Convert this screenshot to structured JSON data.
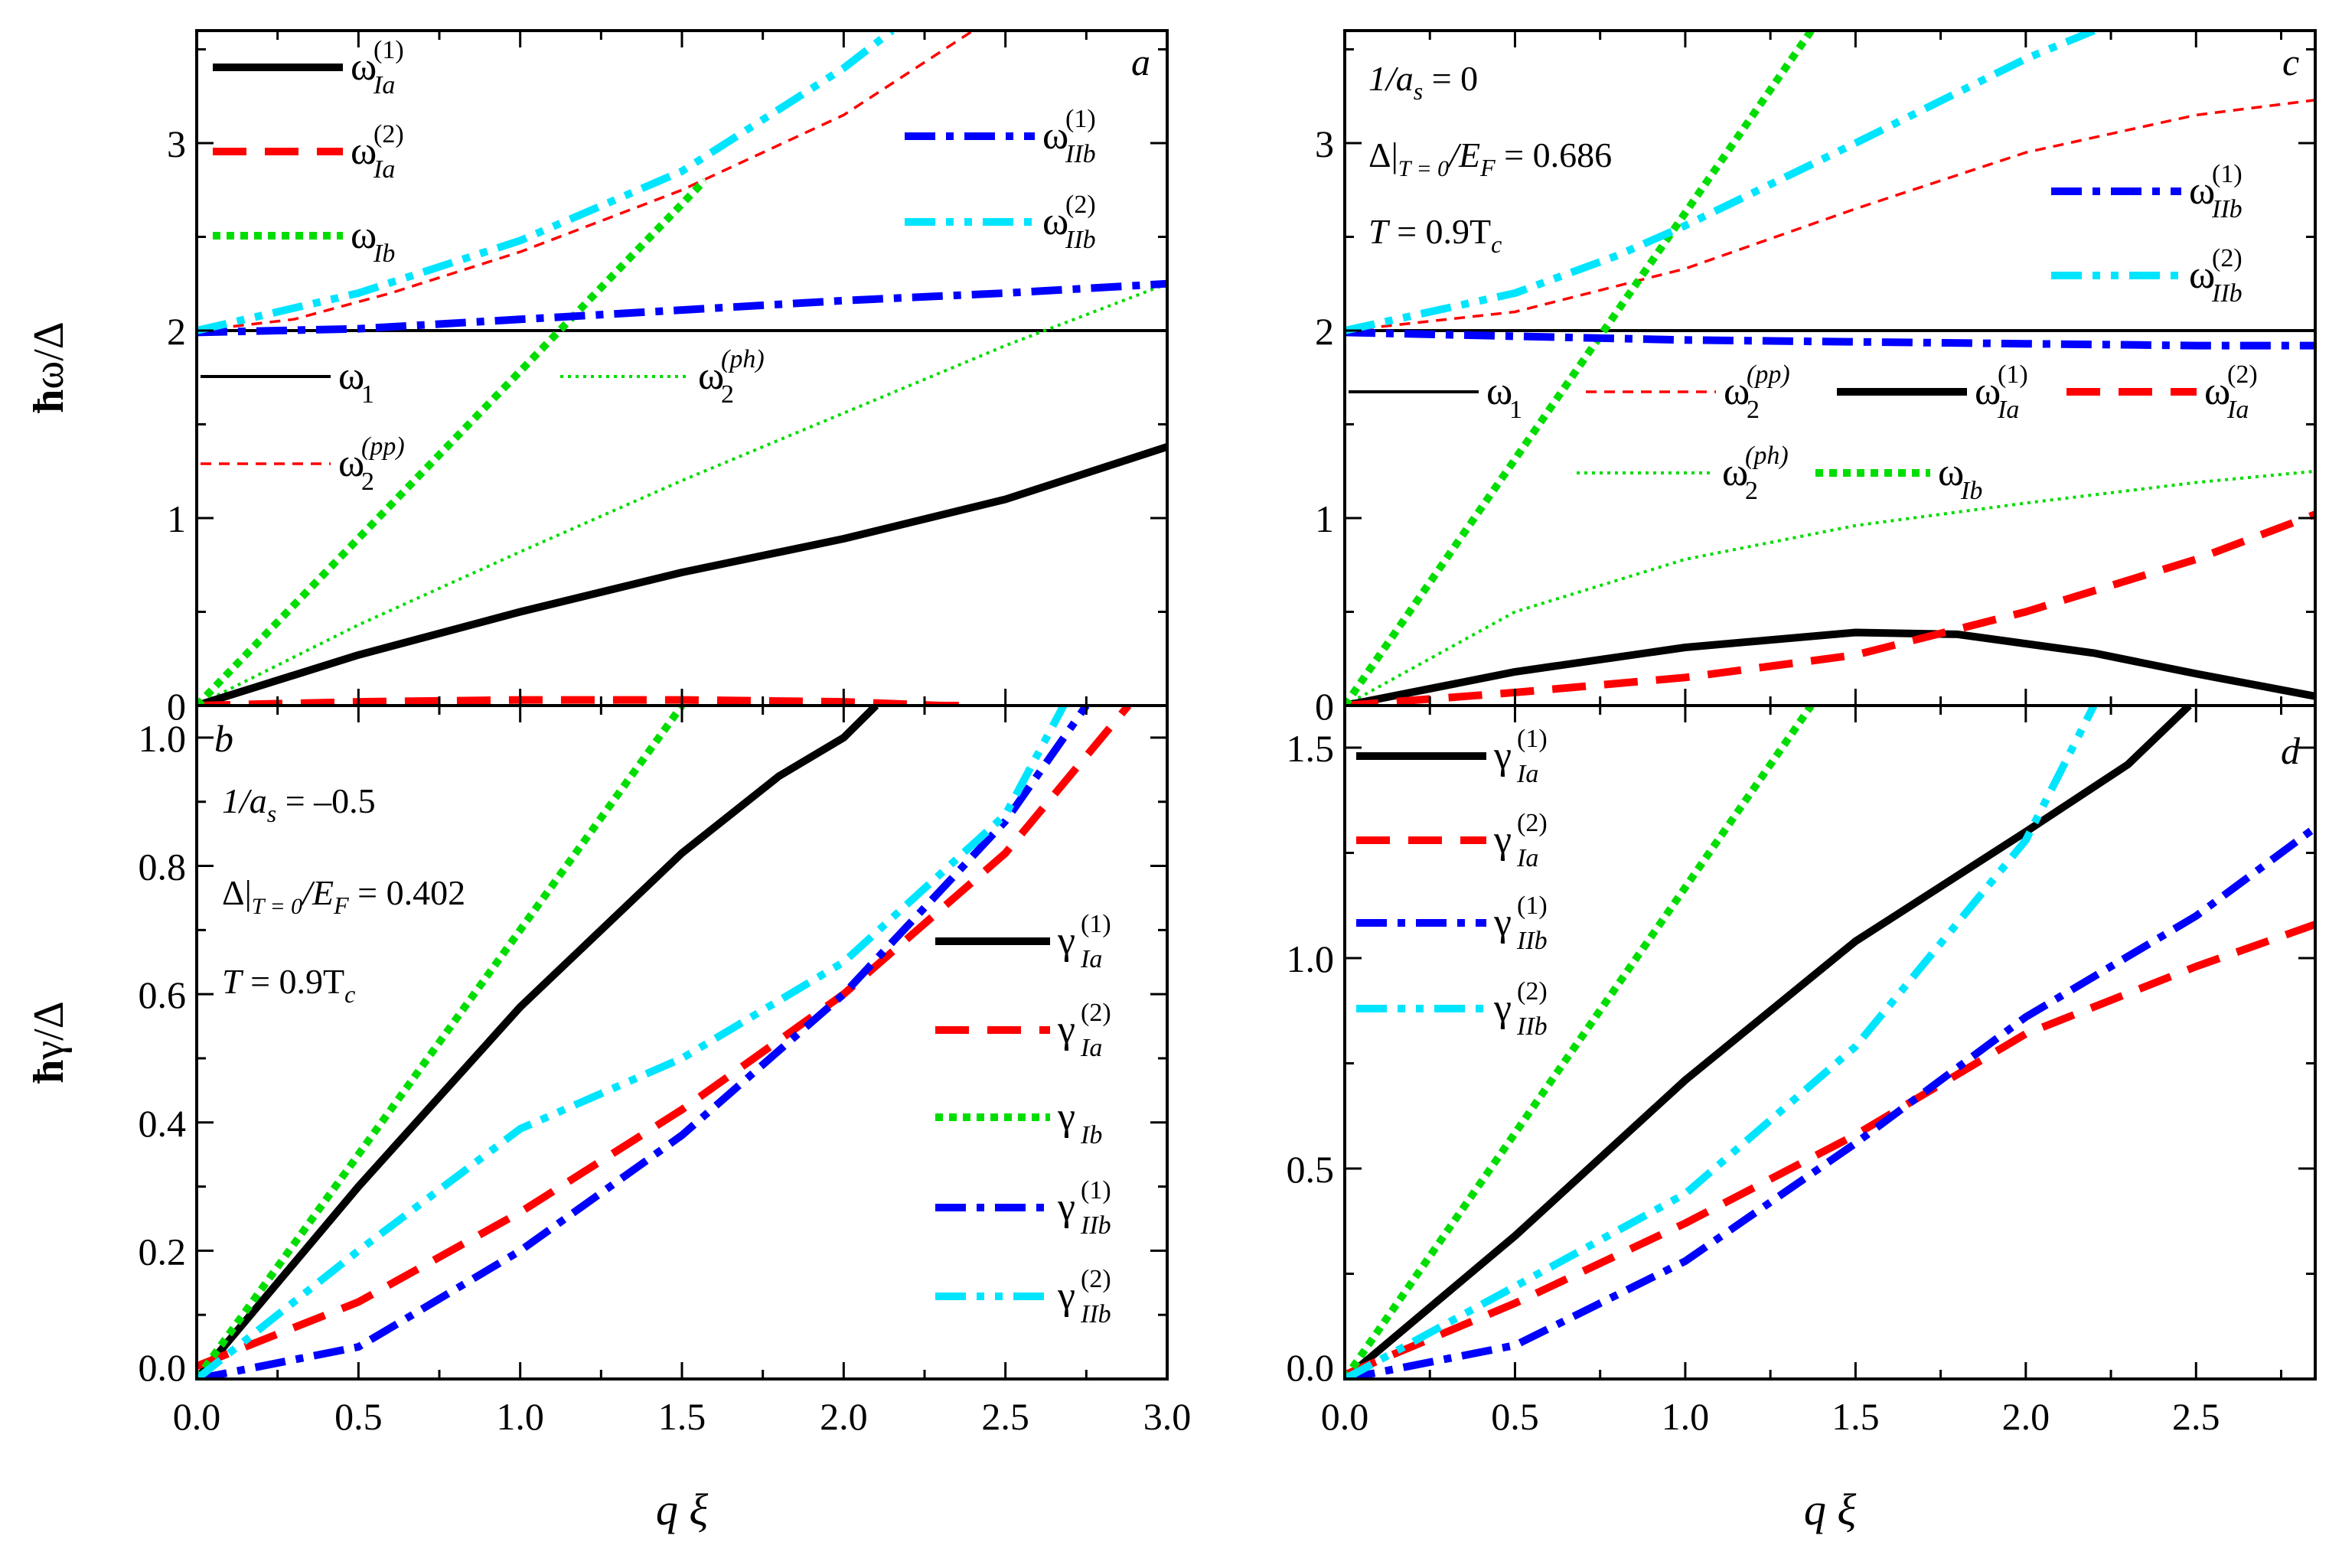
{
  "figure": {
    "xlabel_q": "q",
    "xlabel_xi": "ξ",
    "ylabel_top_hbar": "ħ",
    "ylabel_top_rest": "ω/Δ",
    "ylabel_bottom_hbar": "ħ",
    "ylabel_bottom_rest": "γ/Δ"
  },
  "chart_data": [
    {
      "id": "a",
      "type": "line",
      "panel_letter": "a",
      "xlim": [
        0,
        3.0
      ],
      "ylim": [
        0,
        3.6
      ],
      "xticks": [
        0.0,
        0.5,
        1.0,
        1.5,
        2.0,
        2.5,
        3.0
      ],
      "xtick_labels": [],
      "yticks": [
        0,
        1,
        2,
        3
      ],
      "ytick_labels": [
        "0",
        "1",
        "2",
        "3"
      ],
      "params": [],
      "series": [
        {
          "name": "ω1",
          "color": "#000000",
          "style": "thin-solid",
          "x": [
            0,
            3.0
          ],
          "y": [
            2.0,
            2.0
          ]
        },
        {
          "name": "ω2(pp)",
          "color": "#ff0000",
          "style": "thin-dash",
          "x": [
            0,
            0.3,
            0.6,
            1.0,
            1.5,
            2.0,
            2.4
          ],
          "y": [
            2.0,
            2.06,
            2.2,
            2.42,
            2.75,
            3.15,
            3.6
          ]
        },
        {
          "name": "ω2(ph)",
          "color": "#00dd00",
          "style": "thin-dot",
          "x": [
            0,
            0.5,
            1.0,
            1.5,
            2.0,
            2.5,
            3.0
          ],
          "y": [
            0,
            0.43,
            0.82,
            1.2,
            1.56,
            1.92,
            2.25
          ]
        },
        {
          "name": "ωIa(1)",
          "color": "#000000",
          "style": "thick-solid",
          "x": [
            0,
            0.5,
            1.0,
            1.5,
            2.0,
            2.5,
            3.0
          ],
          "y": [
            0,
            0.27,
            0.5,
            0.71,
            0.89,
            1.1,
            1.38
          ]
        },
        {
          "name": "ωIa(2)",
          "color": "#ff0000",
          "style": "thick-dash",
          "x": [
            0,
            0.5,
            1.0,
            1.5,
            2.0,
            2.3,
            2.4
          ],
          "y": [
            0,
            0.02,
            0.03,
            0.03,
            0.02,
            0.0,
            0.0
          ]
        },
        {
          "name": "ωIb",
          "color": "#00dd00",
          "style": "thick-dot",
          "x": [
            0,
            1.57
          ],
          "y": [
            0,
            2.8
          ]
        },
        {
          "name": "ωIIb(1)",
          "color": "#0000ff",
          "style": "thick-dashdot",
          "x": [
            0,
            0.5,
            1.0,
            1.5,
            2.0,
            2.5,
            3.0
          ],
          "y": [
            1.99,
            2.01,
            2.06,
            2.11,
            2.16,
            2.2,
            2.25
          ]
        },
        {
          "name": "ωIIb(2)",
          "color": "#00e5ff",
          "style": "thick-dashdotdot",
          "x": [
            0,
            0.5,
            1.0,
            1.5,
            2.0,
            2.15
          ],
          "y": [
            2.0,
            2.2,
            2.48,
            2.85,
            3.4,
            3.6
          ]
        }
      ]
    },
    {
      "id": "b",
      "type": "line",
      "panel_letter": "b",
      "xlim": [
        0,
        3.0
      ],
      "ylim": [
        0,
        1.05
      ],
      "xticks": [
        0.0,
        0.5,
        1.0,
        1.5,
        2.0,
        2.5,
        3.0
      ],
      "xtick_labels": [
        "0.0",
        "0.5",
        "1.0",
        "1.5",
        "2.0",
        "2.5",
        "3.0"
      ],
      "yticks": [
        0.0,
        0.2,
        0.4,
        0.6,
        0.8,
        1.0
      ],
      "ytick_labels": [
        "0.0",
        "0.2",
        "0.4",
        "0.6",
        "0.8",
        "1.0"
      ],
      "params": [
        {
          "lhs": "1/a",
          "sub": "s",
          "rhs": " = –0.5"
        },
        {
          "lhs": "Δ|",
          "sub": "T = 0",
          "rhs": "/E",
          "sub2": "F",
          "rhs2": " = 0.402"
        },
        {
          "lhs": "T",
          "rhs": " = 0.9T",
          "sub": "c"
        }
      ],
      "series": [
        {
          "name": "γIa(1)",
          "color": "#000000",
          "style": "thick-solid",
          "x": [
            0,
            0.5,
            1.0,
            1.5,
            1.8,
            2.0,
            2.1
          ],
          "y": [
            0,
            0.3,
            0.58,
            0.82,
            0.94,
            1.0,
            1.05
          ]
        },
        {
          "name": "γIa(2)",
          "color": "#ff0000",
          "style": "thick-dash",
          "x": [
            0,
            0.5,
            1.0,
            1.5,
            2.0,
            2.5,
            2.88
          ],
          "y": [
            0.02,
            0.12,
            0.26,
            0.42,
            0.6,
            0.82,
            1.05
          ]
        },
        {
          "name": "γIb",
          "color": "#00dd00",
          "style": "thick-dot",
          "x": [
            0,
            1.5
          ],
          "y": [
            0,
            1.05
          ]
        },
        {
          "name": "γIIb(1)",
          "color": "#0000ff",
          "style": "thick-dashdot",
          "x": [
            0,
            0.5,
            1.0,
            1.5,
            2.0,
            2.5,
            2.75
          ],
          "y": [
            0,
            0.05,
            0.2,
            0.38,
            0.6,
            0.87,
            1.05
          ]
        },
        {
          "name": "γIIb(2)",
          "color": "#00e5ff",
          "style": "thick-dashdotdot",
          "x": [
            0,
            0.5,
            1.0,
            1.5,
            2.0,
            2.5,
            2.68
          ],
          "y": [
            0,
            0.2,
            0.39,
            0.5,
            0.65,
            0.88,
            1.05
          ]
        }
      ]
    },
    {
      "id": "c",
      "type": "line",
      "panel_letter": "c",
      "xlim": [
        0,
        2.85
      ],
      "ylim": [
        0,
        3.6
      ],
      "xticks": [
        0.0,
        0.5,
        1.0,
        1.5,
        2.0,
        2.5
      ],
      "xtick_labels": [],
      "yticks": [
        0,
        1,
        2,
        3
      ],
      "ytick_labels": [
        "0",
        "1",
        "2",
        "3"
      ],
      "params": [
        {
          "lhs": "1/a",
          "sub": "s",
          "rhs": " = 0"
        },
        {
          "lhs": "Δ|",
          "sub": "T = 0",
          "rhs": "/E",
          "sub2": "F",
          "rhs2": " = 0.686"
        },
        {
          "lhs": "T",
          "rhs": " = 0.9T",
          "sub": "c"
        }
      ],
      "series": [
        {
          "name": "ω1",
          "color": "#000000",
          "style": "thin-solid",
          "x": [
            0,
            2.85
          ],
          "y": [
            2.0,
            2.0
          ]
        },
        {
          "name": "ω2(pp)",
          "color": "#ff0000",
          "style": "thin-dash",
          "x": [
            0,
            0.5,
            1.0,
            1.5,
            2.0,
            2.5,
            2.85
          ],
          "y": [
            2.0,
            2.1,
            2.33,
            2.65,
            2.95,
            3.15,
            3.23
          ]
        },
        {
          "name": "ω2(ph)",
          "color": "#00dd00",
          "style": "thin-dot",
          "x": [
            0,
            0.5,
            1.0,
            1.5,
            2.0,
            2.5,
            2.85
          ],
          "y": [
            0,
            0.5,
            0.78,
            0.96,
            1.08,
            1.19,
            1.25
          ]
        },
        {
          "name": "ωIa(1)",
          "color": "#000000",
          "style": "thick-solid",
          "x": [
            0,
            0.5,
            1.0,
            1.5,
            1.8,
            2.2,
            2.5,
            2.85
          ],
          "y": [
            0,
            0.18,
            0.31,
            0.39,
            0.38,
            0.28,
            0.17,
            0.05
          ]
        },
        {
          "name": "ωIa(2)",
          "color": "#ff0000",
          "style": "thick-dash",
          "x": [
            0,
            0.5,
            1.0,
            1.5,
            2.0,
            2.5,
            2.85
          ],
          "y": [
            0,
            0.07,
            0.15,
            0.27,
            0.5,
            0.78,
            1.02
          ]
        },
        {
          "name": "ωIb",
          "color": "#00dd00",
          "style": "thick-dot",
          "x": [
            0,
            1.37
          ],
          "y": [
            0,
            3.6
          ]
        },
        {
          "name": "ωIIb(1)",
          "color": "#0000ff",
          "style": "thick-dashdot",
          "x": [
            0,
            0.5,
            1.0,
            1.5,
            2.0,
            2.5,
            2.85
          ],
          "y": [
            1.99,
            1.97,
            1.95,
            1.94,
            1.93,
            1.92,
            1.92
          ]
        },
        {
          "name": "ωIIb(2)",
          "color": "#00e5ff",
          "style": "thick-dashdotdot",
          "x": [
            0,
            0.5,
            0.8,
            1.0,
            1.5,
            2.0,
            2.2
          ],
          "y": [
            2.0,
            2.2,
            2.4,
            2.56,
            3.0,
            3.45,
            3.6
          ]
        }
      ]
    },
    {
      "id": "d",
      "type": "line",
      "panel_letter": "d",
      "xlim": [
        0,
        2.85
      ],
      "ylim": [
        0,
        1.6
      ],
      "xticks": [
        0.0,
        0.5,
        1.0,
        1.5,
        2.0,
        2.5
      ],
      "xtick_labels": [
        "0.0",
        "0.5",
        "1.0",
        "1.5",
        "2.0",
        "2.5"
      ],
      "yticks": [
        0.0,
        0.5,
        1.0,
        1.5
      ],
      "ytick_labels": [
        "0.0",
        "0.5",
        "1.0",
        "1.5"
      ],
      "params": [],
      "series": [
        {
          "name": "γIa(1)",
          "color": "#000000",
          "style": "thick-solid",
          "x": [
            0,
            0.5,
            1.0,
            1.5,
            2.0,
            2.3,
            2.48
          ],
          "y": [
            0,
            0.34,
            0.71,
            1.04,
            1.3,
            1.46,
            1.6
          ]
        },
        {
          "name": "γIa(2)",
          "color": "#ff0000",
          "style": "thick-dash",
          "x": [
            0,
            0.5,
            1.0,
            1.5,
            2.0,
            2.5,
            2.85
          ],
          "y": [
            0.01,
            0.18,
            0.37,
            0.58,
            0.82,
            0.98,
            1.08
          ]
        },
        {
          "name": "γIb",
          "color": "#00dd00",
          "style": "thick-dot",
          "x": [
            0,
            1.37
          ],
          "y": [
            0,
            1.6
          ]
        },
        {
          "name": "γIIb(1)",
          "color": "#0000ff",
          "style": "thick-dashdot",
          "x": [
            0,
            0.5,
            1.0,
            1.5,
            2.0,
            2.5,
            2.85
          ],
          "y": [
            0,
            0.08,
            0.28,
            0.56,
            0.86,
            1.1,
            1.31
          ]
        },
        {
          "name": "γIIb(2)",
          "color": "#00e5ff",
          "style": "thick-dashdotdot",
          "x": [
            0,
            0.5,
            1.0,
            1.5,
            2.0,
            2.2
          ],
          "y": [
            0,
            0.22,
            0.44,
            0.79,
            1.28,
            1.6
          ]
        }
      ]
    }
  ]
}
